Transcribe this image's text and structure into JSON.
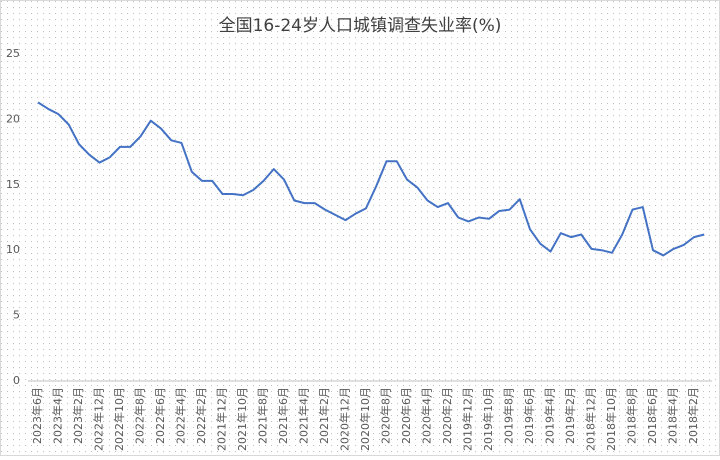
{
  "chart_data": {
    "type": "line",
    "title": "全国16-24岁人口城镇调查失业率(%)",
    "categories": [
      "2023年6月",
      null,
      "2023年4月",
      null,
      "2023年2月",
      null,
      "2022年12月",
      null,
      "2022年10月",
      null,
      "2022年8月",
      null,
      "2022年6月",
      null,
      "2022年4月",
      null,
      "2022年2月",
      null,
      "2021年12月",
      null,
      "2021年10月",
      null,
      "2021年8月",
      null,
      "2021年6月",
      null,
      "2021年4月",
      null,
      "2021年2月",
      null,
      "2020年12月",
      null,
      "2020年10月",
      null,
      "2020年8月",
      null,
      "2020年6月",
      null,
      "2020年4月",
      null,
      "2020年2月",
      null,
      "2019年12月",
      null,
      "2019年10月",
      null,
      "2019年8月",
      null,
      "2019年6月",
      null,
      "2019年4月",
      null,
      "2019年2月",
      null,
      "2018年12月",
      null,
      "2018年10月",
      null,
      "2018年8月",
      null,
      "2018年6月",
      null,
      "2018年4月",
      null,
      "2018年2月",
      null
    ],
    "series": [
      {
        "color": "#4472c4",
        "values": [
          21.3,
          20.8,
          20.4,
          19.6,
          18.1,
          17.3,
          16.7,
          17.1,
          17.9,
          17.9,
          18.7,
          19.9,
          19.3,
          18.4,
          18.2,
          16.0,
          15.3,
          15.3,
          14.3,
          14.3,
          14.2,
          14.6,
          15.3,
          16.2,
          15.4,
          13.8,
          13.6,
          13.6,
          13.1,
          12.7,
          12.3,
          12.8,
          13.2,
          14.9,
          16.8,
          16.8,
          15.4,
          14.8,
          13.8,
          13.3,
          13.6,
          12.5,
          12.2,
          12.5,
          12.4,
          13.0,
          13.1,
          13.9,
          11.6,
          10.5,
          9.9,
          11.3,
          11.0,
          11.2,
          10.1,
          10.0,
          9.8,
          11.2,
          13.1,
          13.3,
          10.0,
          9.6,
          10.1,
          10.4,
          11.0,
          11.2
        ]
      }
    ],
    "ylim": [
      0,
      25
    ],
    "yticks": [
      0,
      5,
      10,
      15,
      20,
      25
    ],
    "grid": false
  }
}
